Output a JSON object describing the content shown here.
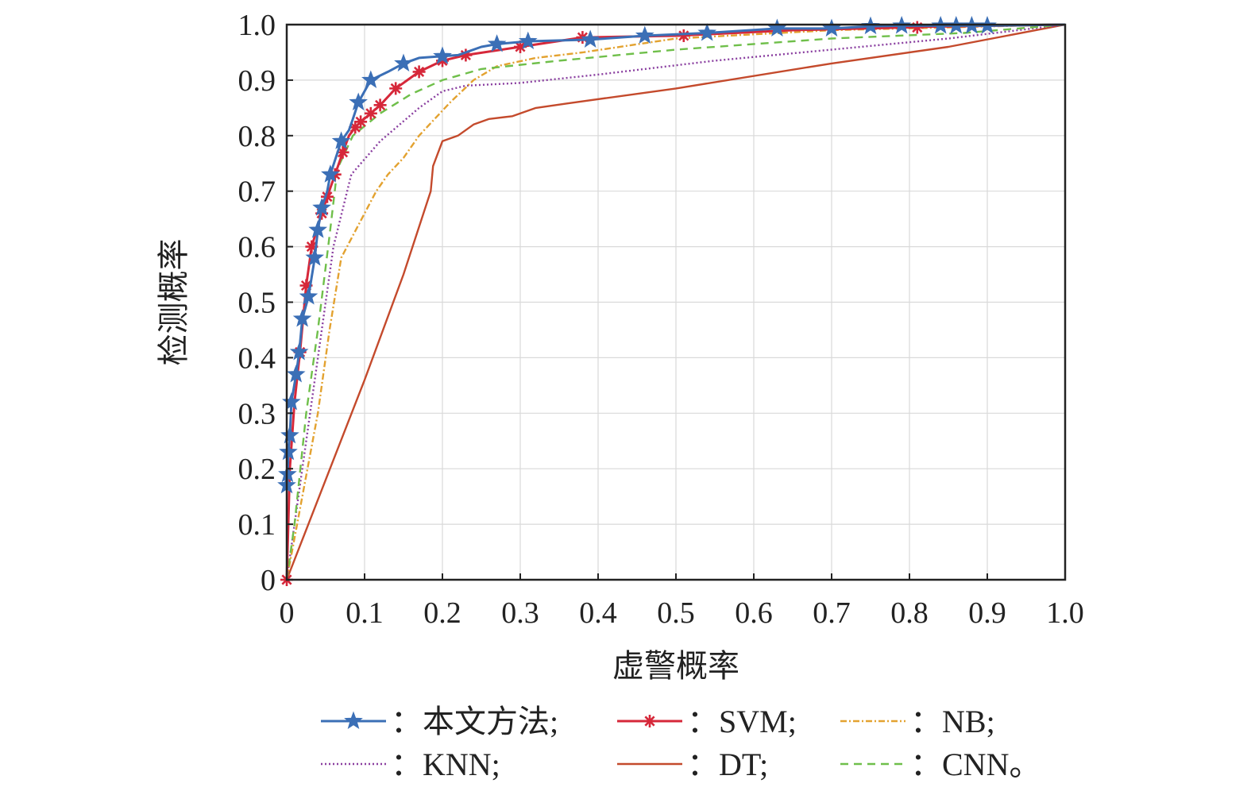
{
  "chart_data": {
    "type": "line",
    "title": "",
    "xlabel": "虚警概率",
    "ylabel": "检测概率",
    "xlim": [
      0,
      1
    ],
    "ylim": [
      0,
      1
    ],
    "grid": true,
    "legend_position": "bottom",
    "x_ticks": [
      "0",
      "0.1",
      "0.2",
      "0.3",
      "0.4",
      "0.5",
      "0.6",
      "0.7",
      "0.8",
      "0.9",
      "1.0"
    ],
    "y_ticks": [
      "0",
      "0.1",
      "0.2",
      "0.3",
      "0.4",
      "0.5",
      "0.6",
      "0.7",
      "0.8",
      "0.9",
      "1.0"
    ],
    "series": [
      {
        "name": "：本文方法;",
        "color": "#3b6fb6",
        "dash": "solid",
        "marker": "star",
        "points": [
          [
            0,
            0.17
          ],
          [
            0.001,
            0.19
          ],
          [
            0.002,
            0.23
          ],
          [
            0.004,
            0.26
          ],
          [
            0.006,
            0.32
          ],
          [
            0.012,
            0.37
          ],
          [
            0.016,
            0.41
          ],
          [
            0.02,
            0.47
          ],
          [
            0.028,
            0.51
          ],
          [
            0.036,
            0.58
          ],
          [
            0.04,
            0.63
          ],
          [
            0.045,
            0.67
          ],
          [
            0.052,
            0.7
          ],
          [
            0.056,
            0.73
          ],
          [
            0.063,
            0.76
          ],
          [
            0.07,
            0.79
          ],
          [
            0.08,
            0.81
          ],
          [
            0.085,
            0.83
          ],
          [
            0.092,
            0.86
          ],
          [
            0.1,
            0.88
          ],
          [
            0.108,
            0.9
          ],
          [
            0.13,
            0.915
          ],
          [
            0.15,
            0.93
          ],
          [
            0.17,
            0.94
          ],
          [
            0.2,
            0.943
          ],
          [
            0.22,
            0.945
          ],
          [
            0.25,
            0.96
          ],
          [
            0.27,
            0.965
          ],
          [
            0.31,
            0.97
          ],
          [
            0.39,
            0.973
          ],
          [
            0.46,
            0.98
          ],
          [
            0.54,
            0.985
          ],
          [
            0.63,
            0.993
          ],
          [
            0.7,
            0.993
          ],
          [
            0.75,
            0.997
          ],
          [
            0.79,
            0.998
          ],
          [
            0.84,
            0.998
          ],
          [
            0.86,
            0.998
          ],
          [
            0.88,
            0.998
          ],
          [
            0.9,
            0.998
          ],
          [
            1,
            1
          ]
        ],
        "markers": [
          [
            0,
            0.17
          ],
          [
            0.001,
            0.19
          ],
          [
            0.002,
            0.23
          ],
          [
            0.004,
            0.26
          ],
          [
            0.006,
            0.32
          ],
          [
            0.012,
            0.37
          ],
          [
            0.016,
            0.41
          ],
          [
            0.02,
            0.47
          ],
          [
            0.028,
            0.51
          ],
          [
            0.036,
            0.58
          ],
          [
            0.04,
            0.63
          ],
          [
            0.045,
            0.67
          ],
          [
            0.056,
            0.73
          ],
          [
            0.07,
            0.79
          ],
          [
            0.092,
            0.86
          ],
          [
            0.108,
            0.9
          ],
          [
            0.15,
            0.93
          ],
          [
            0.2,
            0.943
          ],
          [
            0.27,
            0.965
          ],
          [
            0.31,
            0.97
          ],
          [
            0.39,
            0.973
          ],
          [
            0.46,
            0.98
          ],
          [
            0.54,
            0.985
          ],
          [
            0.63,
            0.993
          ],
          [
            0.7,
            0.993
          ],
          [
            0.75,
            0.997
          ],
          [
            0.79,
            0.998
          ],
          [
            0.84,
            0.998
          ],
          [
            0.86,
            0.998
          ],
          [
            0.88,
            0.998
          ],
          [
            0.9,
            0.998
          ]
        ]
      },
      {
        "name": "：SVM;",
        "color": "#d6283a",
        "dash": "solid",
        "marker": "asterisk",
        "points": [
          [
            0,
            0
          ],
          [
            0.004,
            0.2
          ],
          [
            0.01,
            0.32
          ],
          [
            0.017,
            0.41
          ],
          [
            0.025,
            0.53
          ],
          [
            0.032,
            0.6
          ],
          [
            0.045,
            0.66
          ],
          [
            0.052,
            0.69
          ],
          [
            0.062,
            0.73
          ],
          [
            0.072,
            0.77
          ],
          [
            0.08,
            0.8
          ],
          [
            0.088,
            0.815
          ],
          [
            0.095,
            0.825
          ],
          [
            0.108,
            0.84
          ],
          [
            0.12,
            0.855
          ],
          [
            0.14,
            0.885
          ],
          [
            0.17,
            0.915
          ],
          [
            0.2,
            0.935
          ],
          [
            0.23,
            0.945
          ],
          [
            0.3,
            0.96
          ],
          [
            0.38,
            0.977
          ],
          [
            0.5,
            0.98
          ],
          [
            0.65,
            0.99
          ],
          [
            0.8,
            0.995
          ],
          [
            0.82,
            0.996
          ],
          [
            1,
            1
          ]
        ],
        "markers": [
          [
            0,
            0
          ],
          [
            0.017,
            0.41
          ],
          [
            0.025,
            0.53
          ],
          [
            0.032,
            0.6
          ],
          [
            0.045,
            0.66
          ],
          [
            0.052,
            0.69
          ],
          [
            0.062,
            0.73
          ],
          [
            0.072,
            0.77
          ],
          [
            0.088,
            0.815
          ],
          [
            0.095,
            0.825
          ],
          [
            0.108,
            0.84
          ],
          [
            0.12,
            0.855
          ],
          [
            0.14,
            0.885
          ],
          [
            0.17,
            0.915
          ],
          [
            0.2,
            0.935
          ],
          [
            0.23,
            0.945
          ],
          [
            0.3,
            0.96
          ],
          [
            0.38,
            0.977
          ],
          [
            0.51,
            0.98
          ],
          [
            0.81,
            0.995
          ]
        ]
      },
      {
        "name": "：NB;",
        "color": "#e3a230",
        "dash": "8,3,2,3",
        "marker": "none",
        "points": [
          [
            0,
            0
          ],
          [
            0.02,
            0.15
          ],
          [
            0.04,
            0.3
          ],
          [
            0.055,
            0.45
          ],
          [
            0.07,
            0.58
          ],
          [
            0.085,
            0.62
          ],
          [
            0.1,
            0.66
          ],
          [
            0.115,
            0.7
          ],
          [
            0.13,
            0.73
          ],
          [
            0.15,
            0.76
          ],
          [
            0.17,
            0.8
          ],
          [
            0.19,
            0.83
          ],
          [
            0.21,
            0.86
          ],
          [
            0.24,
            0.9
          ],
          [
            0.27,
            0.925
          ],
          [
            0.32,
            0.94
          ],
          [
            0.38,
            0.95
          ],
          [
            0.5,
            0.975
          ],
          [
            0.7,
            0.99
          ],
          [
            0.85,
            0.995
          ],
          [
            1,
            1
          ]
        ]
      },
      {
        "name": "：KNN;",
        "color": "#8a3fa0",
        "dash": "2,3",
        "marker": "none",
        "points": [
          [
            0,
            0
          ],
          [
            0.02,
            0.2
          ],
          [
            0.04,
            0.4
          ],
          [
            0.06,
            0.6
          ],
          [
            0.083,
            0.73
          ],
          [
            0.12,
            0.79
          ],
          [
            0.17,
            0.85
          ],
          [
            0.2,
            0.88
          ],
          [
            0.23,
            0.89
          ],
          [
            0.3,
            0.895
          ],
          [
            0.4,
            0.91
          ],
          [
            0.55,
            0.935
          ],
          [
            0.7,
            0.955
          ],
          [
            0.85,
            0.975
          ],
          [
            1,
            1
          ]
        ]
      },
      {
        "name": "：DT;",
        "color": "#c44a2c",
        "dash": "solid",
        "marker": "none",
        "points": [
          [
            0,
            0
          ],
          [
            0.05,
            0.18
          ],
          [
            0.1,
            0.36
          ],
          [
            0.15,
            0.55
          ],
          [
            0.185,
            0.7
          ],
          [
            0.188,
            0.745
          ],
          [
            0.2,
            0.79
          ],
          [
            0.22,
            0.8
          ],
          [
            0.24,
            0.82
          ],
          [
            0.26,
            0.83
          ],
          [
            0.29,
            0.835
          ],
          [
            0.32,
            0.85
          ],
          [
            0.36,
            0.858
          ],
          [
            0.5,
            0.885
          ],
          [
            0.7,
            0.93
          ],
          [
            0.85,
            0.96
          ],
          [
            1,
            1
          ]
        ]
      },
      {
        "name": "：CNN。",
        "color": "#6fbf4a",
        "dash": "10,7",
        "marker": "none",
        "points": [
          [
            0,
            0
          ],
          [
            0.01,
            0.1
          ],
          [
            0.025,
            0.3
          ],
          [
            0.04,
            0.45
          ],
          [
            0.055,
            0.62
          ],
          [
            0.065,
            0.74
          ],
          [
            0.085,
            0.8
          ],
          [
            0.12,
            0.84
          ],
          [
            0.16,
            0.875
          ],
          [
            0.2,
            0.9
          ],
          [
            0.25,
            0.92
          ],
          [
            0.35,
            0.935
          ],
          [
            0.5,
            0.955
          ],
          [
            0.7,
            0.975
          ],
          [
            0.87,
            0.985
          ],
          [
            1,
            1
          ]
        ]
      }
    ]
  }
}
